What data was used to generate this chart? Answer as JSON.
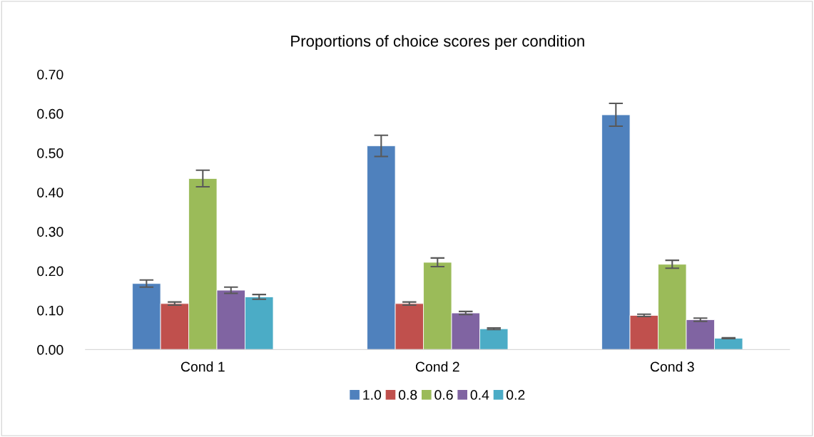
{
  "chart_data": {
    "type": "bar",
    "title": "Proportions of choice scores per condition",
    "categories": [
      "Cond 1",
      "Cond 2",
      "Cond 3"
    ],
    "series": [
      {
        "name": "1.0",
        "color": "#4f81bd",
        "values": [
          0.168,
          0.518,
          0.597
        ],
        "errors": [
          0.009,
          0.027,
          0.029
        ]
      },
      {
        "name": "0.8",
        "color": "#c0504d",
        "values": [
          0.117,
          0.117,
          0.087
        ],
        "errors": [
          0.004,
          0.004,
          0.003
        ]
      },
      {
        "name": "0.6",
        "color": "#9bbb59",
        "values": [
          0.435,
          0.222,
          0.217
        ],
        "errors": [
          0.021,
          0.011,
          0.01
        ]
      },
      {
        "name": "0.4",
        "color": "#8064a2",
        "values": [
          0.151,
          0.093,
          0.076
        ],
        "errors": [
          0.008,
          0.004,
          0.004
        ]
      },
      {
        "name": "0.2",
        "color": "#4bacc6",
        "values": [
          0.134,
          0.053,
          0.029
        ],
        "errors": [
          0.006,
          0.002,
          0.001
        ]
      }
    ],
    "ylim": [
      0,
      0.7
    ],
    "yticks": [
      {
        "value": 0,
        "label": "0.00"
      },
      {
        "value": 0.1,
        "label": "0.10"
      },
      {
        "value": 0.2,
        "label": "0.20"
      },
      {
        "value": 0.3,
        "label": "0.30"
      },
      {
        "value": 0.4,
        "label": "0.40"
      },
      {
        "value": 0.5,
        "label": "0.50"
      },
      {
        "value": 0.6,
        "label": "0.60"
      },
      {
        "value": 0.7,
        "label": "0.70"
      }
    ],
    "grid": false,
    "legend": "bottom"
  }
}
